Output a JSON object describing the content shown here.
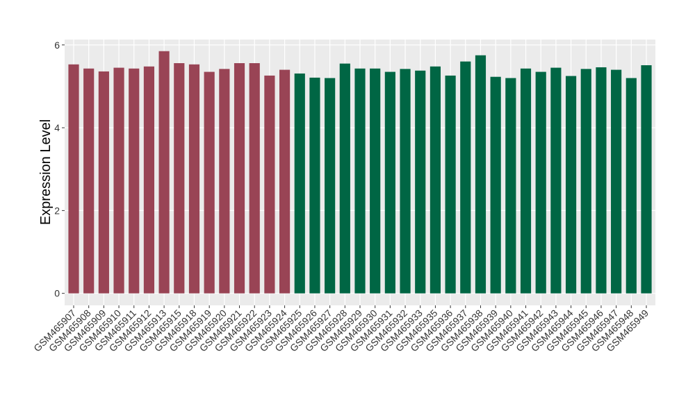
{
  "chart_data": {
    "type": "bar",
    "y_label": "Expression Level",
    "categories": [
      "GSM465907",
      "GSM465908",
      "GSM465909",
      "GSM465910",
      "GSM465911",
      "GSM465912",
      "GSM465913",
      "GSM465915",
      "GSM465918",
      "GSM465919",
      "GSM465920",
      "GSM465921",
      "GSM465922",
      "GSM465923",
      "GSM465924",
      "GSM465925",
      "GSM465926",
      "GSM465927",
      "GSM465928",
      "GSM465929",
      "GSM465930",
      "GSM465931",
      "GSM465932",
      "GSM465933",
      "GSM465935",
      "GSM465936",
      "GSM465937",
      "GSM465938",
      "GSM465939",
      "GSM465940",
      "GSM465941",
      "GSM465942",
      "GSM465943",
      "GSM465944",
      "GSM465945",
      "GSM465946",
      "GSM465947",
      "GSM465948",
      "GSM465949"
    ],
    "values": [
      5.53,
      5.43,
      5.36,
      5.45,
      5.43,
      5.48,
      5.85,
      5.56,
      5.53,
      5.35,
      5.42,
      5.56,
      5.56,
      5.26,
      5.4,
      5.31,
      5.21,
      5.2,
      5.55,
      5.43,
      5.43,
      5.35,
      5.42,
      5.38,
      5.48,
      5.26,
      5.6,
      5.75,
      5.23,
      5.2,
      5.43,
      5.35,
      5.45,
      5.25,
      5.42,
      5.46,
      5.4,
      5.2,
      5.51
    ],
    "colors": [
      "#994455",
      "#994455",
      "#994455",
      "#994455",
      "#994455",
      "#994455",
      "#994455",
      "#994455",
      "#994455",
      "#994455",
      "#994455",
      "#994455",
      "#994455",
      "#994455",
      "#994455",
      "#006644",
      "#006644",
      "#006644",
      "#006644",
      "#006644",
      "#006644",
      "#006644",
      "#006644",
      "#006644",
      "#006644",
      "#006644",
      "#006644",
      "#006644",
      "#006644",
      "#006644",
      "#006644",
      "#006644",
      "#006644",
      "#006644",
      "#006644",
      "#006644",
      "#006644",
      "#006644",
      "#006644"
    ],
    "ylim": [
      -0.29,
      6.13
    ],
    "yticks": [
      0,
      2,
      4,
      6
    ],
    "grid": true
  }
}
